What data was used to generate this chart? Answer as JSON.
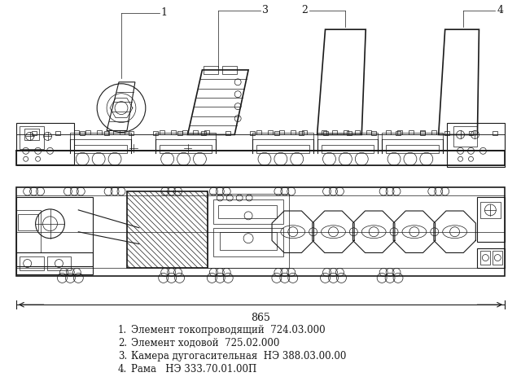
{
  "background_color": "#ffffff",
  "legend_items": [
    {
      "num": "1.",
      "text": "Элемент токопроводящий  724.03.000"
    },
    {
      "num": "2.",
      "text": "Элемент ходовой  725.02.000"
    },
    {
      "num": "3.",
      "text": "Камера дугогасительная  НЭ 388.03.00.00"
    },
    {
      "num": "4.",
      "text": "Рама   НЭ 333.70.01.00П"
    }
  ],
  "label_1": "1",
  "label_2": "2",
  "label_3": "3",
  "label_4": "4",
  "dimension_label": "865",
  "fig_width": 6.4,
  "fig_height": 4.79,
  "dpi": 100,
  "color": "#1a1a1a"
}
